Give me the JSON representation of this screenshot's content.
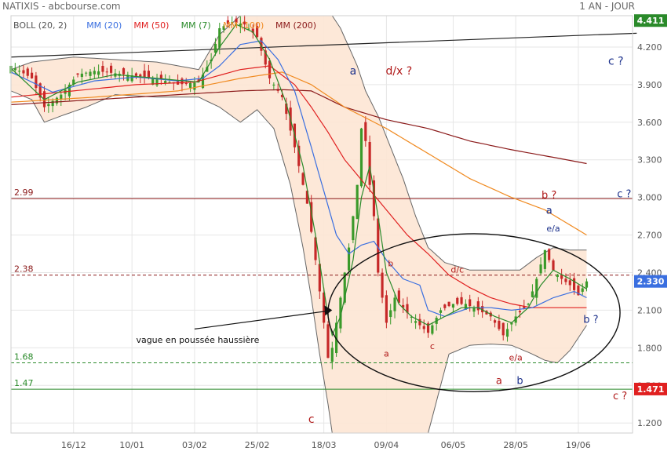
{
  "header": {
    "left": "NATIXIS - abcbourse.com",
    "right": "1 AN - JOUR"
  },
  "legend": [
    {
      "label": "BOLL (20, 2)",
      "color": "#555555"
    },
    {
      "label": "MM (20)",
      "color": "#3a6fe0"
    },
    {
      "label": "MM (50)",
      "color": "#e02020"
    },
    {
      "label": "MM (7)",
      "color": "#2a8a2a"
    },
    {
      "label": "MM (100)",
      "color": "#f08a20"
    },
    {
      "label": "MM (200)",
      "color": "#8b1a1a"
    }
  ],
  "chart_data": {
    "type": "line",
    "ylim": [
      1.12,
      4.45
    ],
    "y_ticks": [
      4.2,
      3.9,
      3.6,
      3.3,
      3.0,
      2.7,
      2.4,
      2.1,
      1.8,
      1.5,
      1.2
    ],
    "y_tick_labels": [
      "4.200",
      "3.900",
      "3.600",
      "3.300",
      "3.000",
      "2.700",
      "2.400",
      "2.100",
      "1.800",
      "1.500",
      "1.200"
    ],
    "x_labels": [
      {
        "label": "16/12",
        "idx": 15
      },
      {
        "label": "10/01",
        "idx": 29
      },
      {
        "label": "03/02",
        "idx": 44
      },
      {
        "label": "25/02",
        "idx": 59
      },
      {
        "label": "18/03",
        "idx": 75
      },
      {
        "label": "09/04",
        "idx": 90
      },
      {
        "label": "06/05",
        "idx": 106
      },
      {
        "label": "28/05",
        "idx": 121
      },
      {
        "label": "19/06",
        "idx": 136
      }
    ],
    "price_points": [
      [
        0,
        4.05
      ],
      [
        5,
        3.95
      ],
      [
        8,
        3.72
      ],
      [
        12,
        3.82
      ],
      [
        16,
        3.98
      ],
      [
        20,
        4.01
      ],
      [
        25,
        3.99
      ],
      [
        30,
        3.97
      ],
      [
        35,
        3.95
      ],
      [
        40,
        3.9
      ],
      [
        45,
        3.92
      ],
      [
        48,
        4.1
      ],
      [
        50,
        4.35
      ],
      [
        53,
        4.4
      ],
      [
        56,
        4.38
      ],
      [
        59,
        4.28
      ],
      [
        62,
        3.95
      ],
      [
        65,
        3.8
      ],
      [
        68,
        3.4
      ],
      [
        71,
        2.95
      ],
      [
        73,
        2.5
      ],
      [
        75,
        2.0
      ],
      [
        76,
        1.72
      ],
      [
        77,
        1.8
      ],
      [
        79,
        2.2
      ],
      [
        81,
        2.6
      ],
      [
        83,
        3.1
      ],
      [
        84,
        3.55
      ],
      [
        85,
        3.45
      ],
      [
        86,
        3.1
      ],
      [
        87,
        2.85
      ],
      [
        88,
        2.4
      ],
      [
        90,
        2.0
      ],
      [
        92,
        2.2
      ],
      [
        95,
        2.08
      ],
      [
        98,
        1.98
      ],
      [
        100,
        1.92
      ],
      [
        103,
        2.1
      ],
      [
        106,
        2.15
      ],
      [
        109,
        2.15
      ],
      [
        112,
        2.1
      ],
      [
        115,
        2.05
      ],
      [
        118,
        1.9
      ],
      [
        121,
        2.05
      ],
      [
        124,
        2.15
      ],
      [
        126,
        2.35
      ],
      [
        128,
        2.58
      ],
      [
        130,
        2.42
      ],
      [
        132,
        2.35
      ],
      [
        134,
        2.3
      ],
      [
        136,
        2.22
      ],
      [
        138,
        2.33
      ]
    ],
    "mm7_points": [
      [
        0,
        4.03
      ],
      [
        8,
        3.78
      ],
      [
        16,
        3.92
      ],
      [
        25,
        3.98
      ],
      [
        35,
        3.95
      ],
      [
        45,
        3.92
      ],
      [
        50,
        4.2
      ],
      [
        54,
        4.38
      ],
      [
        58,
        4.32
      ],
      [
        62,
        4.1
      ],
      [
        66,
        3.75
      ],
      [
        70,
        3.25
      ],
      [
        73,
        2.7
      ],
      [
        76,
        2.05
      ],
      [
        77,
        1.9
      ],
      [
        79,
        2.05
      ],
      [
        82,
        2.5
      ],
      [
        84,
        3.0
      ],
      [
        86,
        3.25
      ],
      [
        88,
        2.85
      ],
      [
        90,
        2.4
      ],
      [
        93,
        2.15
      ],
      [
        96,
        2.05
      ],
      [
        100,
        1.98
      ],
      [
        104,
        2.05
      ],
      [
        108,
        2.12
      ],
      [
        112,
        2.12
      ],
      [
        116,
        2.05
      ],
      [
        120,
        2.0
      ],
      [
        124,
        2.12
      ],
      [
        127,
        2.3
      ],
      [
        130,
        2.42
      ],
      [
        134,
        2.35
      ],
      [
        138,
        2.27
      ]
    ],
    "mm20_points": [
      [
        0,
        4.0
      ],
      [
        10,
        3.84
      ],
      [
        20,
        3.93
      ],
      [
        30,
        3.96
      ],
      [
        40,
        3.93
      ],
      [
        46,
        3.95
      ],
      [
        50,
        4.05
      ],
      [
        55,
        4.22
      ],
      [
        60,
        4.25
      ],
      [
        64,
        4.1
      ],
      [
        68,
        3.85
      ],
      [
        72,
        3.4
      ],
      [
        75,
        3.05
      ],
      [
        78,
        2.7
      ],
      [
        81,
        2.55
      ],
      [
        84,
        2.62
      ],
      [
        87,
        2.65
      ],
      [
        90,
        2.5
      ],
      [
        94,
        2.35
      ],
      [
        98,
        2.3
      ],
      [
        100,
        2.1
      ],
      [
        104,
        2.05
      ],
      [
        110,
        2.12
      ],
      [
        115,
        2.12
      ],
      [
        120,
        2.1
      ],
      [
        125,
        2.12
      ],
      [
        130,
        2.2
      ],
      [
        135,
        2.25
      ],
      [
        138,
        2.2
      ]
    ],
    "mm50_points": [
      [
        0,
        3.8
      ],
      [
        15,
        3.85
      ],
      [
        30,
        3.9
      ],
      [
        44,
        3.92
      ],
      [
        55,
        4.02
      ],
      [
        62,
        4.05
      ],
      [
        68,
        3.9
      ],
      [
        72,
        3.72
      ],
      [
        76,
        3.52
      ],
      [
        80,
        3.3
      ],
      [
        85,
        3.1
      ],
      [
        90,
        2.9
      ],
      [
        95,
        2.7
      ],
      [
        100,
        2.55
      ],
      [
        105,
        2.38
      ],
      [
        110,
        2.28
      ],
      [
        115,
        2.2
      ],
      [
        120,
        2.15
      ],
      [
        125,
        2.12
      ],
      [
        130,
        2.12
      ],
      [
        135,
        2.12
      ],
      [
        138,
        2.12
      ]
    ],
    "mm100_points": [
      [
        0,
        3.76
      ],
      [
        20,
        3.8
      ],
      [
        40,
        3.85
      ],
      [
        55,
        3.95
      ],
      [
        65,
        4.0
      ],
      [
        72,
        3.9
      ],
      [
        80,
        3.72
      ],
      [
        90,
        3.55
      ],
      [
        100,
        3.35
      ],
      [
        110,
        3.15
      ],
      [
        120,
        3.0
      ],
      [
        128,
        2.9
      ],
      [
        134,
        2.78
      ],
      [
        138,
        2.7
      ]
    ],
    "mm200_points": [
      [
        0,
        3.74
      ],
      [
        20,
        3.78
      ],
      [
        40,
        3.82
      ],
      [
        55,
        3.85
      ],
      [
        65,
        3.86
      ],
      [
        72,
        3.85
      ],
      [
        80,
        3.72
      ],
      [
        90,
        3.62
      ],
      [
        100,
        3.55
      ],
      [
        110,
        3.45
      ],
      [
        120,
        3.38
      ],
      [
        130,
        3.32
      ],
      [
        138,
        3.27
      ]
    ],
    "boll_upper_points": [
      [
        0,
        4.02
      ],
      [
        5,
        4.08
      ],
      [
        10,
        4.1
      ],
      [
        15,
        4.12
      ],
      [
        25,
        4.1
      ],
      [
        35,
        4.08
      ],
      [
        45,
        4.02
      ],
      [
        50,
        4.3
      ],
      [
        55,
        4.45
      ],
      [
        60,
        4.45
      ],
      [
        63,
        4.45
      ],
      [
        67,
        4.45
      ],
      [
        70,
        4.45
      ],
      [
        73,
        4.45
      ],
      [
        75,
        4.45
      ],
      [
        77,
        4.45
      ],
      [
        79,
        4.35
      ],
      [
        81,
        4.2
      ],
      [
        83,
        4.05
      ],
      [
        85,
        3.85
      ],
      [
        88,
        3.65
      ],
      [
        91,
        3.4
      ],
      [
        94,
        3.15
      ],
      [
        97,
        2.85
      ],
      [
        100,
        2.6
      ],
      [
        104,
        2.48
      ],
      [
        110,
        2.42
      ],
      [
        116,
        2.42
      ],
      [
        122,
        2.42
      ],
      [
        126,
        2.52
      ],
      [
        130,
        2.6
      ],
      [
        134,
        2.58
      ],
      [
        138,
        2.58
      ]
    ],
    "boll_lower_points": [
      [
        0,
        3.85
      ],
      [
        5,
        3.78
      ],
      [
        8,
        3.6
      ],
      [
        12,
        3.65
      ],
      [
        18,
        3.72
      ],
      [
        25,
        3.82
      ],
      [
        35,
        3.8
      ],
      [
        45,
        3.8
      ],
      [
        50,
        3.72
      ],
      [
        55,
        3.6
      ],
      [
        59,
        3.7
      ],
      [
        63,
        3.55
      ],
      [
        67,
        3.1
      ],
      [
        70,
        2.6
      ],
      [
        72,
        2.2
      ],
      [
        74,
        1.75
      ],
      [
        76,
        1.35
      ],
      [
        77,
        1.12
      ],
      [
        79,
        1.12
      ],
      [
        81,
        1.12
      ],
      [
        83,
        1.12
      ],
      [
        85,
        1.12
      ],
      [
        88,
        1.12
      ],
      [
        91,
        1.12
      ],
      [
        94,
        1.12
      ],
      [
        97,
        1.12
      ],
      [
        100,
        1.12
      ],
      [
        103,
        1.5
      ],
      [
        105,
        1.75
      ],
      [
        110,
        1.82
      ],
      [
        115,
        1.83
      ],
      [
        120,
        1.82
      ],
      [
        125,
        1.75
      ],
      [
        128,
        1.7
      ],
      [
        131,
        1.68
      ],
      [
        134,
        1.78
      ],
      [
        138,
        1.98
      ]
    ],
    "horizontal_lines": [
      {
        "label": "2.99",
        "value": 2.99,
        "color": "#8b1a1a",
        "dashed": false
      },
      {
        "label": "2.38",
        "value": 2.38,
        "color": "#8b1a1a",
        "dashed": true
      },
      {
        "label": "1.68",
        "value": 1.68,
        "color": "#2a8a2a",
        "dashed": true
      },
      {
        "label": "1.47",
        "value": 1.47,
        "color": "#2a8a2a",
        "dashed": false
      }
    ],
    "trendline": {
      "from": [
        0,
        4.12
      ],
      "to": [
        150,
        4.31
      ]
    },
    "price_badges": [
      {
        "label": "4.411",
        "value": 4.411,
        "bg": "#2a8a2a"
      },
      {
        "label": "2.330",
        "value": 2.33,
        "bg": "#3a6fe0"
      },
      {
        "label": "1.471",
        "value": 1.471,
        "bg": "#e02020"
      }
    ],
    "annotations": [
      {
        "text": "a",
        "idx": 82,
        "value": 3.98,
        "color": "#1a2f8a",
        "size": 14
      },
      {
        "text": "d/x ?",
        "idx": 93,
        "value": 3.98,
        "color": "#b01818",
        "size": 14
      },
      {
        "text": "c ?",
        "idx": 145,
        "value": 4.06,
        "color": "#1a2f8a",
        "size": 14
      },
      {
        "text": "b ?",
        "idx": 129,
        "value": 2.99,
        "color": "#b01818",
        "size": 13
      },
      {
        "text": "c ?",
        "idx": 147,
        "value": 3.0,
        "color": "#1a2f8a",
        "size": 13
      },
      {
        "text": "a",
        "idx": 129,
        "value": 2.87,
        "color": "#1a2f8a",
        "size": 13
      },
      {
        "text": "e/a",
        "idx": 130,
        "value": 2.73,
        "color": "#1a2f8a",
        "size": 11
      },
      {
        "text": "b",
        "idx": 91,
        "value": 2.45,
        "color": "#b01818",
        "size": 11
      },
      {
        "text": "d/c",
        "idx": 107,
        "value": 2.4,
        "color": "#b01818",
        "size": 11
      },
      {
        "text": "a",
        "idx": 90,
        "value": 1.73,
        "color": "#b01818",
        "size": 11
      },
      {
        "text": "c",
        "idx": 101,
        "value": 1.79,
        "color": "#b01818",
        "size": 11
      },
      {
        "text": "e/a",
        "idx": 121,
        "value": 1.7,
        "color": "#b01818",
        "size": 11
      },
      {
        "text": "a",
        "idx": 117,
        "value": 1.51,
        "color": "#b01818",
        "size": 13
      },
      {
        "text": "b",
        "idx": 122,
        "value": 1.51,
        "color": "#1a2f8a",
        "size": 13
      },
      {
        "text": "b ?",
        "idx": 139,
        "value": 2.0,
        "color": "#1a2f8a",
        "size": 13
      },
      {
        "text": "c",
        "idx": 72,
        "value": 1.2,
        "color": "#b01818",
        "size": 14
      },
      {
        "text": "c ?",
        "idx": 146,
        "value": 1.39,
        "color": "#b01818",
        "size": 13
      }
    ],
    "arrow_note": {
      "text": "vague en poussée haussière",
      "text_idx": 30,
      "text_value": 1.84,
      "from": [
        44,
        1.95
      ],
      "to": [
        77,
        2.1
      ]
    },
    "ellipse": {
      "center_idx": 111,
      "center_value": 2.08,
      "radius_idx": 35,
      "radius_value": 0.63
    }
  }
}
